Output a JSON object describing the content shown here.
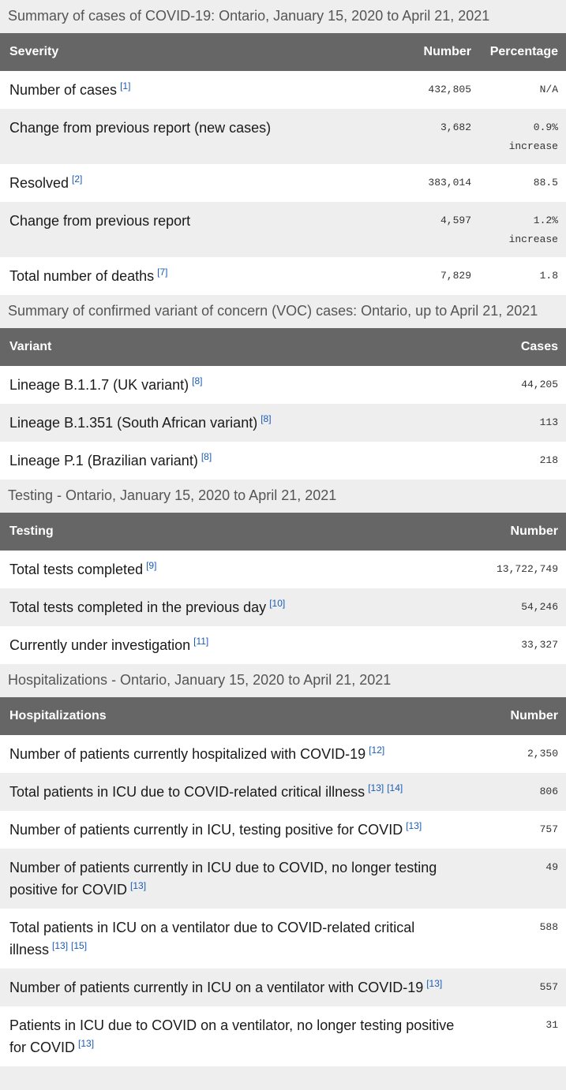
{
  "tables": [
    {
      "caption": "Summary of cases of COVID-19: Ontario, January 15, 2020 to April 21, 2021",
      "headers": [
        "Severity",
        "Number",
        "Percentage"
      ],
      "rows": [
        {
          "label": "Number of cases",
          "refs": [
            "[1]"
          ],
          "values": [
            "432,805",
            "N/A"
          ]
        },
        {
          "label": "Change from previous report (new cases)",
          "refs": [],
          "values": [
            "3,682",
            "0.9% increase"
          ]
        },
        {
          "label": "Resolved",
          "refs": [
            "[2]"
          ],
          "values": [
            "383,014",
            "88.5"
          ]
        },
        {
          "label": "Change from previous report",
          "refs": [],
          "values": [
            "4,597",
            "1.2% increase"
          ]
        },
        {
          "label": "Total number of deaths",
          "refs": [
            "[7]"
          ],
          "values": [
            "7,829",
            "1.8"
          ]
        }
      ]
    },
    {
      "caption": "Summary of confirmed variant of concern (VOC) cases: Ontario, up to April 21, 2021",
      "headers": [
        "Variant",
        "Cases"
      ],
      "rows": [
        {
          "label": "Lineage B.1.1.7 (UK variant)",
          "refs": [
            "[8]"
          ],
          "values": [
            "44,205"
          ]
        },
        {
          "label": "Lineage B.1.351 (South African variant)",
          "refs": [
            "[8]"
          ],
          "values": [
            "113"
          ]
        },
        {
          "label": "Lineage P.1 (Brazilian variant)",
          "refs": [
            "[8]"
          ],
          "values": [
            "218"
          ]
        }
      ]
    },
    {
      "caption": "Testing - Ontario, January 15, 2020 to April 21, 2021",
      "headers": [
        "Testing",
        "Number"
      ],
      "rows": [
        {
          "label": "Total tests completed",
          "refs": [
            "[9]"
          ],
          "values": [
            "13,722,749"
          ]
        },
        {
          "label": "Total tests completed in the previous day",
          "refs": [
            "[10]"
          ],
          "values": [
            "54,246"
          ]
        },
        {
          "label": "Currently under investigation",
          "refs": [
            "[11]"
          ],
          "values": [
            "33,327"
          ]
        }
      ]
    },
    {
      "caption": "Hospitalizations - Ontario, January 15, 2020 to April 21, 2021",
      "headers": [
        "Hospitalizations",
        "Number"
      ],
      "rows": [
        {
          "label": "Number of patients currently hospitalized with COVID-19",
          "refs": [
            "[12]"
          ],
          "values": [
            "2,350"
          ]
        },
        {
          "label": "Total patients in ICU due to COVID-related critical illness",
          "refs": [
            "[13]",
            "[14]"
          ],
          "values": [
            "806"
          ]
        },
        {
          "label": "Number of patients currently in ICU, testing positive for COVID",
          "refs": [
            "[13]"
          ],
          "values": [
            "757"
          ]
        },
        {
          "label": "Number of patients currently in ICU due to COVID, no longer testing positive for COVID",
          "refs": [
            "[13]"
          ],
          "values": [
            "49"
          ]
        },
        {
          "label": "Total patients in ICU on a ventilator due to COVID-related critical illness",
          "refs": [
            "[13]",
            "[15]"
          ],
          "values": [
            "588"
          ]
        },
        {
          "label": "Number of patients currently in ICU on a ventilator with COVID-19",
          "refs": [
            "[13]"
          ],
          "values": [
            "557"
          ]
        },
        {
          "label": "Patients in ICU due to COVID on a ventilator, no longer testing positive for COVID",
          "refs": [
            "[13]"
          ],
          "values": [
            "31"
          ]
        }
      ]
    }
  ]
}
